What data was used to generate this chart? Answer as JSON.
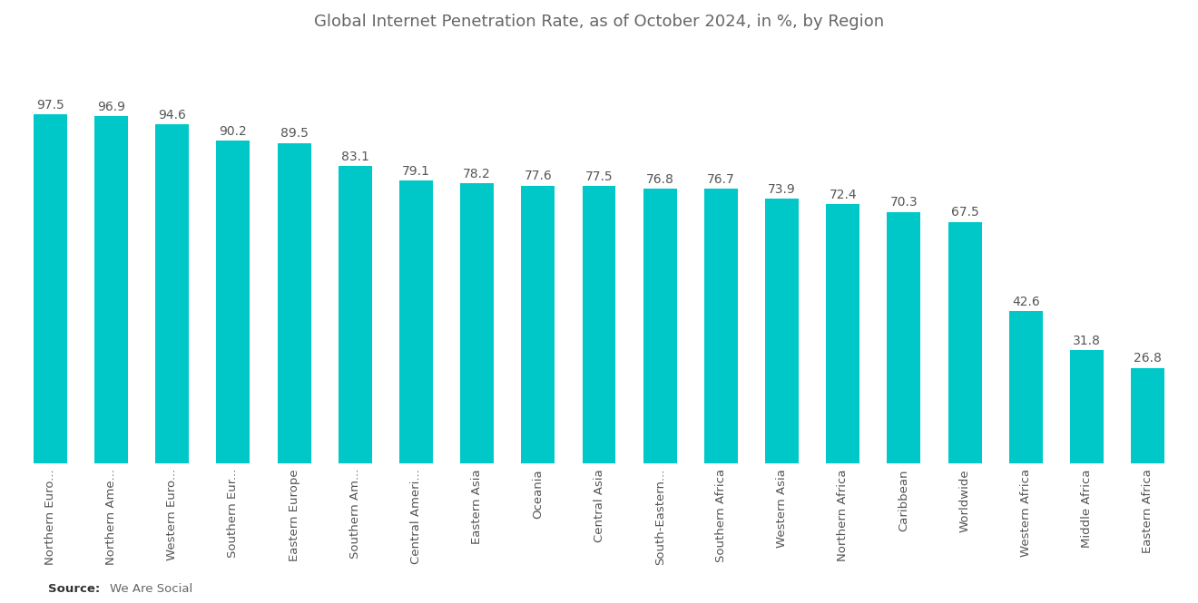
{
  "title": "Global Internet Penetration Rate, as of October 2024, in %, by Region",
  "categories": [
    "Northern Euro...",
    "Northern Ame...",
    "Western Euro...",
    "Southern Eur...",
    "Eastern Europe",
    "Southern Am...",
    "Central Ameri...",
    "Eastern Asia",
    "Oceania",
    "Central Asia",
    "South-Eastern...",
    "Southern Africa",
    "Western Asia",
    "Northern Africa",
    "Caribbean",
    "Worldwide",
    "Western Africa",
    "Middle Africa",
    "Eastern Africa"
  ],
  "values": [
    97.5,
    96.9,
    94.6,
    90.2,
    89.5,
    83.1,
    79.1,
    78.2,
    77.6,
    77.5,
    76.8,
    76.7,
    73.9,
    72.4,
    70.3,
    67.5,
    42.6,
    31.8,
    26.8
  ],
  "bar_color": "#00C8C8",
  "background_color": "#ffffff",
  "value_color": "#555555",
  "label_color": "#555555",
  "title_color": "#666666",
  "source_bold": "Source:",
  "source_text": "We Are Social",
  "ylim": [
    0,
    115
  ],
  "value_fontsize": 10,
  "label_fontsize": 9.5,
  "title_fontsize": 13
}
